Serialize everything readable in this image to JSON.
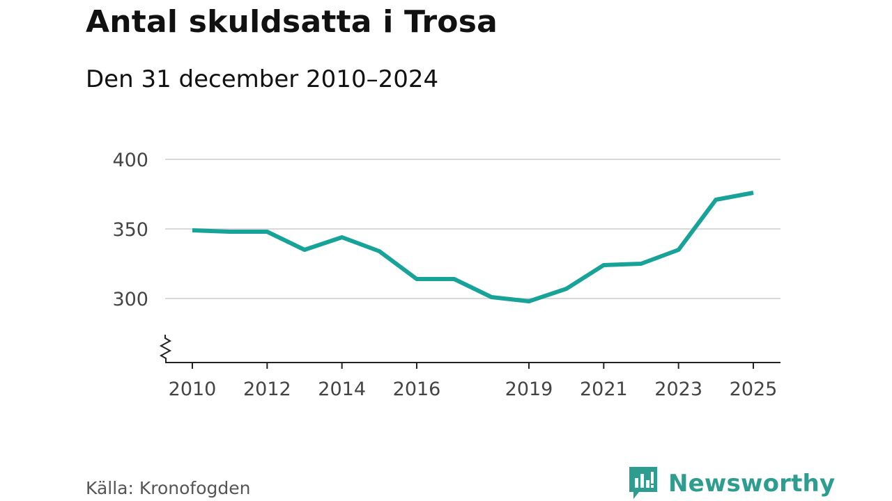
{
  "colors": {
    "line": "#17a398",
    "grid": "#d9d9d9",
    "axis": "#222222",
    "tick_text": "#444444",
    "brand": "#2d9d8f"
  },
  "brand": {
    "name": "Newsworthy",
    "icon": "chart-bubble-icon"
  },
  "source": "Källa: Kronofogden",
  "chart_data": {
    "type": "line",
    "title": "Antal skuldsatta i Trosa",
    "subtitle": "Den 31 december 2010–2024",
    "xlabel": "",
    "ylabel": "",
    "x_tick_labels": [
      "2010",
      "2012",
      "2014",
      "2016",
      "2019",
      "2021",
      "2023",
      "2025"
    ],
    "y_ticks": [
      300,
      350,
      400
    ],
    "xlim": [
      2010,
      2025
    ],
    "ylim": [
      254,
      400
    ],
    "grid": true,
    "axis_break": true,
    "series": [
      {
        "name": "Antal skuldsatta",
        "x": [
          2010,
          2011,
          2012,
          2013,
          2014,
          2015,
          2016,
          2017,
          2018,
          2019,
          2020,
          2021,
          2022,
          2023,
          2024,
          2025
        ],
        "values": [
          349,
          348,
          348,
          335,
          344,
          334,
          314,
          314,
          301,
          298,
          307,
          324,
          325,
          335,
          371,
          376
        ]
      }
    ]
  }
}
